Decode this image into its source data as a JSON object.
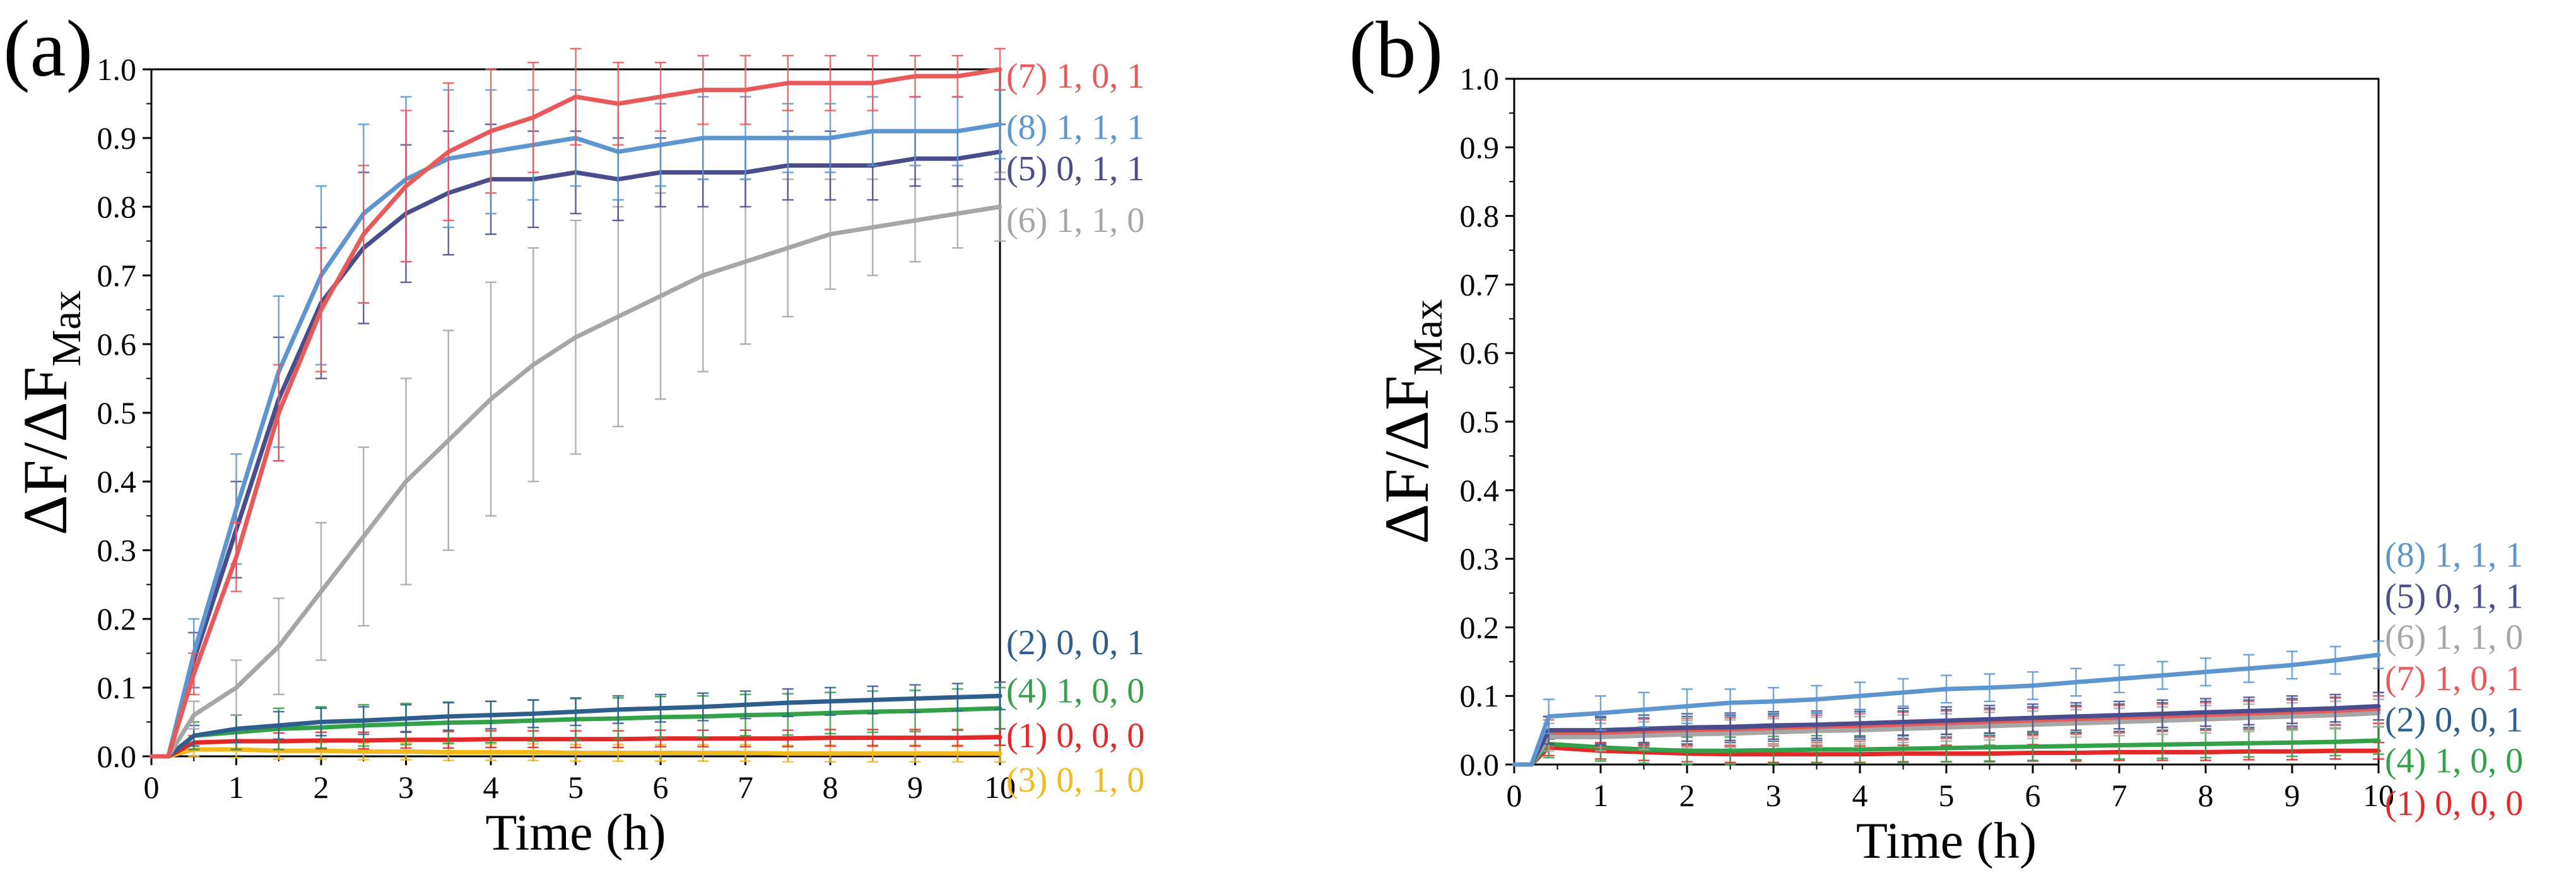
{
  "chart_data": [
    {
      "type": "line",
      "panel": "(a)",
      "xlabel": "Time (h)",
      "ylabel": "ΔF/ΔF",
      "ylabel_sub": "Max",
      "xlim": [
        0,
        10
      ],
      "ylim": [
        0,
        1.0
      ],
      "x_ticks": [
        "0",
        "1",
        "2",
        "3",
        "4",
        "5",
        "6",
        "7",
        "8",
        "9",
        "10"
      ],
      "y_ticks": [
        "0.0",
        "0.1",
        "0.2",
        "0.3",
        "0.4",
        "0.5",
        "0.6",
        "0.7",
        "0.8",
        "0.9",
        "1.0"
      ],
      "x": [
        0,
        0.2,
        0.5,
        1,
        1.5,
        2,
        2.5,
        3,
        3.5,
        4,
        4.5,
        5,
        5.5,
        6,
        6.5,
        7,
        7.5,
        8,
        8.5,
        9,
        9.5,
        10
      ],
      "series": [
        {
          "name": "(7) 1, 0, 1",
          "color": "#e8595a",
          "label_value": 0.99,
          "values": [
            0,
            0,
            0.12,
            0.29,
            0.5,
            0.65,
            0.76,
            0.83,
            0.88,
            0.91,
            0.93,
            0.96,
            0.95,
            0.96,
            0.97,
            0.97,
            0.98,
            0.98,
            0.98,
            0.99,
            0.99,
            1.0
          ],
          "errors": [
            0,
            0,
            0.03,
            0.05,
            0.07,
            0.09,
            0.1,
            0.11,
            0.1,
            0.09,
            0.08,
            0.07,
            0.06,
            0.05,
            0.05,
            0.05,
            0.04,
            0.04,
            0.04,
            0.03,
            0.03,
            0.03
          ]
        },
        {
          "name": "(8) 1, 1, 1",
          "color": "#5d95cf",
          "label_value": 0.915,
          "values": [
            0,
            0,
            0.15,
            0.36,
            0.56,
            0.7,
            0.79,
            0.84,
            0.87,
            0.88,
            0.89,
            0.9,
            0.88,
            0.89,
            0.9,
            0.9,
            0.9,
            0.9,
            0.91,
            0.91,
            0.91,
            0.92
          ],
          "errors": [
            0,
            0,
            0.05,
            0.08,
            0.11,
            0.13,
            0.13,
            0.12,
            0.1,
            0.09,
            0.08,
            0.07,
            0.07,
            0.06,
            0.06,
            0.06,
            0.05,
            0.05,
            0.05,
            0.05,
            0.05,
            0.05
          ]
        },
        {
          "name": "(5) 0, 1, 1",
          "color": "#4a4d8c",
          "label_value": 0.855,
          "values": [
            0,
            0,
            0.14,
            0.33,
            0.52,
            0.66,
            0.74,
            0.79,
            0.82,
            0.84,
            0.84,
            0.85,
            0.84,
            0.85,
            0.85,
            0.85,
            0.86,
            0.86,
            0.86,
            0.87,
            0.87,
            0.88
          ],
          "errors": [
            0,
            0,
            0.04,
            0.07,
            0.09,
            0.11,
            0.11,
            0.1,
            0.09,
            0.08,
            0.07,
            0.06,
            0.06,
            0.05,
            0.05,
            0.05,
            0.05,
            0.05,
            0.05,
            0.04,
            0.04,
            0.04
          ]
        },
        {
          "name": "(6) 1, 1, 0",
          "color": "#a6a6a6",
          "label_value": 0.78,
          "values": [
            0,
            0,
            0.06,
            0.1,
            0.16,
            0.24,
            0.32,
            0.4,
            0.46,
            0.52,
            0.57,
            0.61,
            0.64,
            0.67,
            0.7,
            0.72,
            0.74,
            0.76,
            0.77,
            0.78,
            0.79,
            0.8
          ],
          "errors": [
            0,
            0,
            0.02,
            0.04,
            0.07,
            0.1,
            0.13,
            0.15,
            0.16,
            0.17,
            0.17,
            0.17,
            0.16,
            0.15,
            0.14,
            0.12,
            0.1,
            0.08,
            0.07,
            0.06,
            0.05,
            0.05
          ]
        },
        {
          "name": "(2) 0, 0, 1",
          "color": "#2e5e8c",
          "label_value": 0.165,
          "values": [
            0,
            0,
            0.03,
            0.04,
            0.045,
            0.05,
            0.052,
            0.055,
            0.058,
            0.06,
            0.062,
            0.065,
            0.068,
            0.07,
            0.072,
            0.075,
            0.078,
            0.08,
            0.082,
            0.084,
            0.086,
            0.088
          ],
          "errors": [
            0,
            0,
            0.015,
            0.02,
            0.02,
            0.02,
            0.02,
            0.02,
            0.02,
            0.02,
            0.02,
            0.02,
            0.02,
            0.02,
            0.02,
            0.02,
            0.02,
            0.02,
            0.02,
            0.02,
            0.02,
            0.02
          ]
        },
        {
          "name": "(4) 1, 0, 0",
          "color": "#33a04a",
          "label_value": 0.095,
          "values": [
            0,
            0,
            0.03,
            0.035,
            0.04,
            0.042,
            0.045,
            0.047,
            0.049,
            0.05,
            0.052,
            0.054,
            0.055,
            0.057,
            0.058,
            0.06,
            0.061,
            0.063,
            0.065,
            0.066,
            0.068,
            0.07
          ],
          "errors": [
            0,
            0,
            0.02,
            0.025,
            0.03,
            0.03,
            0.03,
            0.03,
            0.03,
            0.03,
            0.03,
            0.03,
            0.03,
            0.03,
            0.03,
            0.03,
            0.03,
            0.03,
            0.03,
            0.03,
            0.03,
            0.03
          ]
        },
        {
          "name": "(1) 0, 0, 0",
          "color": "#e42727",
          "label_value": 0.03,
          "values": [
            0,
            0,
            0.02,
            0.022,
            0.022,
            0.023,
            0.023,
            0.024,
            0.024,
            0.025,
            0.025,
            0.025,
            0.025,
            0.026,
            0.026,
            0.026,
            0.026,
            0.027,
            0.027,
            0.027,
            0.027,
            0.028
          ],
          "errors": [
            0,
            0,
            0.01,
            0.012,
            0.012,
            0.012,
            0.012,
            0.012,
            0.012,
            0.012,
            0.012,
            0.012,
            0.012,
            0.012,
            0.012,
            0.012,
            0.012,
            0.012,
            0.012,
            0.012,
            0.012,
            0.012
          ]
        },
        {
          "name": "(3) 0, 1, 0",
          "color": "#f2b81c",
          "label_value": -0.035,
          "values": [
            0,
            0,
            0.01,
            0.01,
            0.008,
            0.008,
            0.007,
            0.007,
            0.006,
            0.006,
            0.006,
            0.005,
            0.005,
            0.005,
            0.005,
            0.005,
            0.004,
            0.004,
            0.004,
            0.004,
            0.004,
            0.004
          ],
          "errors": [
            0,
            0,
            0.01,
            0.012,
            0.012,
            0.012,
            0.012,
            0.012,
            0.012,
            0.012,
            0.012,
            0.012,
            0.012,
            0.012,
            0.012,
            0.012,
            0.012,
            0.012,
            0.012,
            0.012,
            0.012,
            0.012
          ]
        }
      ]
    },
    {
      "type": "line",
      "panel": "(b)",
      "xlabel": "Time (h)",
      "ylabel": "ΔF/ΔF",
      "ylabel_sub": "Max",
      "xlim": [
        0,
        10
      ],
      "ylim": [
        0,
        1.0
      ],
      "x_ticks": [
        "0",
        "1",
        "2",
        "3",
        "4",
        "5",
        "6",
        "7",
        "8",
        "9",
        "10"
      ],
      "y_ticks": [
        "0.0",
        "0.1",
        "0.2",
        "0.3",
        "0.4",
        "0.5",
        "0.6",
        "0.7",
        "0.8",
        "0.9",
        "1.0"
      ],
      "x": [
        0,
        0.2,
        0.4,
        1,
        1.5,
        2,
        2.5,
        3,
        3.5,
        4,
        4.5,
        5,
        5.5,
        6,
        6.5,
        7,
        7.5,
        8,
        8.5,
        9,
        9.5,
        10
      ],
      "series": [
        {
          "name": "(8) 1, 1, 1",
          "color": "#5d95cf",
          "label_value": 0.305,
          "values": [
            0,
            0,
            0.07,
            0.075,
            0.08,
            0.085,
            0.09,
            0.092,
            0.095,
            0.1,
            0.105,
            0.11,
            0.112,
            0.115,
            0.12,
            0.125,
            0.13,
            0.135,
            0.14,
            0.145,
            0.152,
            0.16
          ],
          "errors": [
            0,
            0,
            0.025,
            0.025,
            0.025,
            0.025,
            0.02,
            0.02,
            0.02,
            0.02,
            0.02,
            0.02,
            0.02,
            0.02,
            0.02,
            0.02,
            0.02,
            0.02,
            0.02,
            0.02,
            0.02,
            0.02
          ]
        },
        {
          "name": "(5) 0, 1, 1",
          "color": "#4a4d8c",
          "label_value": 0.245,
          "values": [
            0,
            0,
            0.05,
            0.05,
            0.052,
            0.054,
            0.055,
            0.057,
            0.058,
            0.06,
            0.062,
            0.064,
            0.066,
            0.068,
            0.07,
            0.072,
            0.074,
            0.076,
            0.078,
            0.08,
            0.082,
            0.085
          ],
          "errors": [
            0,
            0,
            0.02,
            0.02,
            0.02,
            0.02,
            0.02,
            0.02,
            0.02,
            0.02,
            0.02,
            0.02,
            0.02,
            0.02,
            0.02,
            0.02,
            0.02,
            0.02,
            0.02,
            0.02,
            0.02,
            0.02
          ]
        },
        {
          "name": "(6) 1, 1, 0",
          "color": "#a6a6a6",
          "label_value": 0.185,
          "values": [
            0,
            0,
            0.04,
            0.04,
            0.042,
            0.044,
            0.045,
            0.047,
            0.049,
            0.05,
            0.052,
            0.054,
            0.056,
            0.058,
            0.06,
            0.062,
            0.064,
            0.066,
            0.068,
            0.07,
            0.072,
            0.075
          ],
          "errors": [
            0,
            0,
            0.02,
            0.02,
            0.02,
            0.02,
            0.02,
            0.02,
            0.02,
            0.02,
            0.02,
            0.02,
            0.02,
            0.02,
            0.02,
            0.02,
            0.02,
            0.02,
            0.02,
            0.02,
            0.02,
            0.02
          ]
        },
        {
          "name": "(7) 1, 0, 1",
          "color": "#e8595a",
          "label_value": 0.125,
          "values": [
            0,
            0,
            0.045,
            0.045,
            0.046,
            0.047,
            0.048,
            0.05,
            0.052,
            0.054,
            0.056,
            0.058,
            0.06,
            0.062,
            0.064,
            0.066,
            0.068,
            0.07,
            0.072,
            0.074,
            0.077,
            0.08
          ],
          "errors": [
            0,
            0,
            0.02,
            0.02,
            0.02,
            0.02,
            0.02,
            0.02,
            0.02,
            0.02,
            0.02,
            0.02,
            0.02,
            0.02,
            0.02,
            0.02,
            0.02,
            0.02,
            0.02,
            0.02,
            0.02,
            0.02
          ]
        },
        {
          "name": "(2) 0, 0, 1",
          "color": "#2e5e8c",
          "label_value": 0.065,
          "values": [
            0,
            0,
            0.05,
            0.048,
            0.048,
            0.05,
            0.052,
            0.054,
            0.055,
            0.057,
            0.058,
            0.06,
            0.062,
            0.064,
            0.066,
            0.068,
            0.07,
            0.072,
            0.074,
            0.076,
            0.078,
            0.08
          ],
          "errors": [
            0,
            0,
            0.02,
            0.02,
            0.02,
            0.02,
            0.02,
            0.02,
            0.02,
            0.02,
            0.02,
            0.02,
            0.02,
            0.02,
            0.02,
            0.02,
            0.02,
            0.02,
            0.02,
            0.02,
            0.02,
            0.02
          ]
        },
        {
          "name": "(4) 1, 0, 0",
          "color": "#33a04a",
          "label_value": 0.005,
          "values": [
            0,
            0,
            0.03,
            0.025,
            0.022,
            0.02,
            0.02,
            0.021,
            0.022,
            0.022,
            0.023,
            0.024,
            0.025,
            0.026,
            0.027,
            0.028,
            0.029,
            0.03,
            0.031,
            0.032,
            0.033,
            0.035
          ],
          "errors": [
            0,
            0,
            0.02,
            0.02,
            0.02,
            0.02,
            0.02,
            0.02,
            0.02,
            0.02,
            0.02,
            0.02,
            0.02,
            0.02,
            0.02,
            0.02,
            0.02,
            0.02,
            0.02,
            0.02,
            0.02,
            0.02
          ]
        },
        {
          "name": "(1) 0, 0, 0",
          "color": "#e42727",
          "label_value": -0.057,
          "values": [
            0,
            0,
            0.025,
            0.02,
            0.018,
            0.016,
            0.015,
            0.015,
            0.015,
            0.015,
            0.016,
            0.016,
            0.016,
            0.017,
            0.017,
            0.018,
            0.018,
            0.018,
            0.019,
            0.019,
            0.02,
            0.02
          ],
          "errors": [
            0,
            0,
            0.012,
            0.012,
            0.012,
            0.012,
            0.012,
            0.012,
            0.012,
            0.012,
            0.012,
            0.012,
            0.012,
            0.012,
            0.012,
            0.012,
            0.012,
            0.012,
            0.012,
            0.012,
            0.012,
            0.012
          ]
        }
      ]
    }
  ]
}
